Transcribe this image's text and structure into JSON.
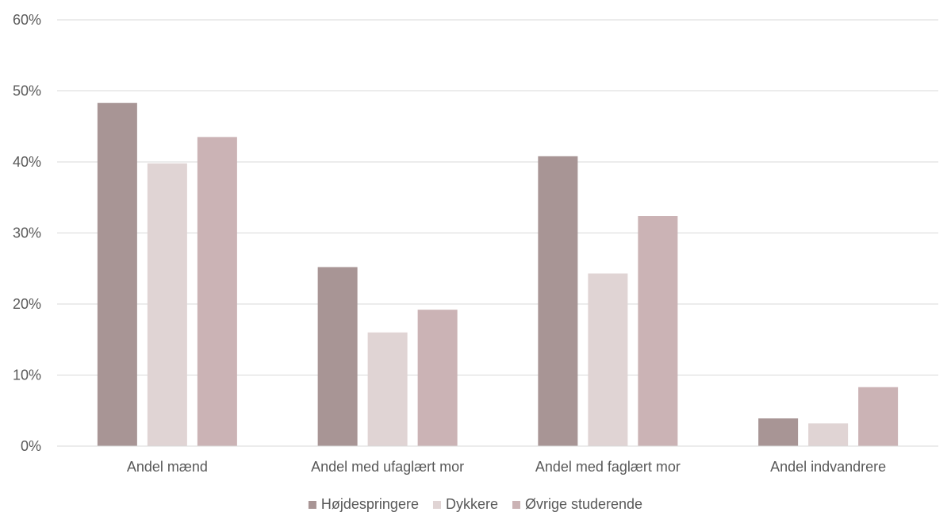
{
  "chart_data": {
    "type": "bar",
    "title": "",
    "xlabel": "",
    "ylabel": "",
    "ylim": [
      0,
      60
    ],
    "yticks": [
      0,
      10,
      20,
      30,
      40,
      50,
      60
    ],
    "ytick_labels": [
      "0%",
      "10%",
      "20%",
      "30%",
      "40%",
      "50%",
      "60%"
    ],
    "grid": true,
    "legend_position": "bottom",
    "categories": [
      "Andel mænd",
      "Andel med ufaglært mor",
      "Andel med faglært mor",
      "Andel indvandrere"
    ],
    "series": [
      {
        "name": "Højdespringere",
        "color": "#a89595",
        "values": [
          48.3,
          25.2,
          40.8,
          3.9
        ]
      },
      {
        "name": "Dykkere",
        "color": "#e0d4d4",
        "values": [
          39.8,
          16.0,
          24.3,
          3.2
        ]
      },
      {
        "name": "Øvrige studerende",
        "color": "#cbb3b5",
        "values": [
          43.5,
          19.2,
          32.4,
          8.3
        ]
      }
    ]
  }
}
